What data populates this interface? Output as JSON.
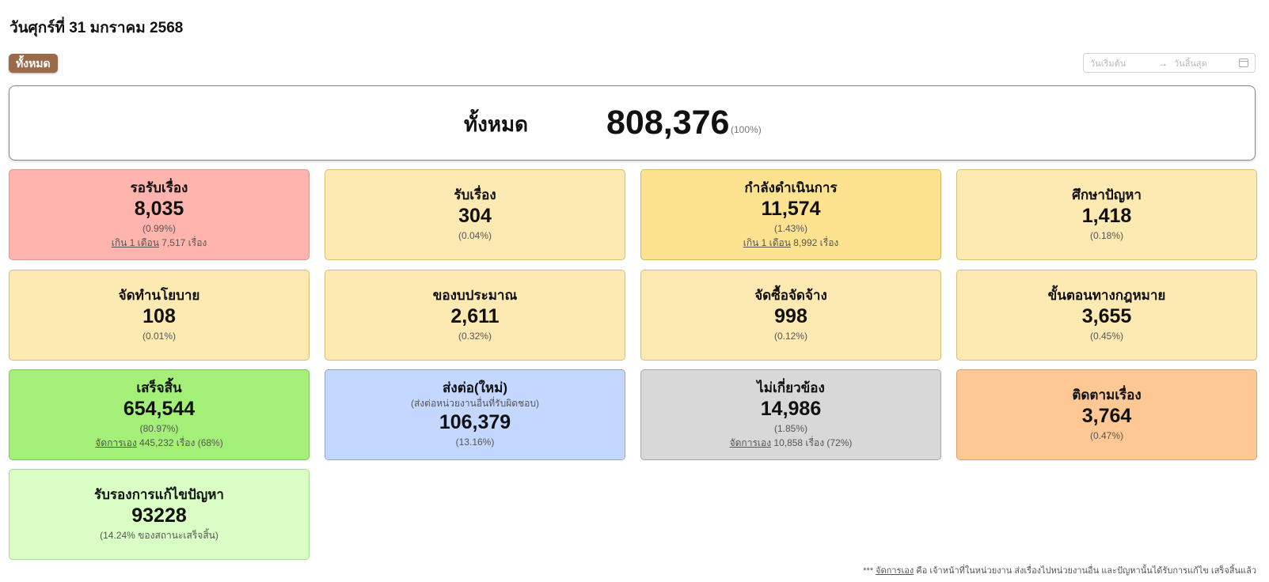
{
  "date_heading": "วันศุกร์ที่ 31 มกราคม 2568",
  "filter": {
    "all_label": "ทั้งหมด"
  },
  "date_range": {
    "start_placeholder": "วันเริ่มต้น",
    "arrow": "→",
    "end_placeholder": "วันสิ้นสุด"
  },
  "total": {
    "label": "ทั้งหมด",
    "value": "808,376",
    "pct": "(100%)"
  },
  "cards": [
    {
      "title": "รอรับเรื่อง",
      "value": "8,035",
      "pct": "(0.99%)",
      "note_link": "เกิน 1 เดือน",
      "note_rest": " 7,517 เรื่อง"
    },
    {
      "title": "รับเรื่อง",
      "value": "304",
      "pct": "(0.04%)"
    },
    {
      "title": "กำลังดำเนินการ",
      "value": "11,574",
      "pct": "(1.43%)",
      "note_link": "เกิน 1 เดือน",
      "note_rest": " 8,992 เรื่อง"
    },
    {
      "title": "ศึกษาปัญหา",
      "value": "1,418",
      "pct": "(0.18%)"
    },
    {
      "title": "จัดทำนโยบาย",
      "value": "108",
      "pct": "(0.01%)"
    },
    {
      "title": "ของบประมาณ",
      "value": "2,611",
      "pct": "(0.32%)"
    },
    {
      "title": "จัดซื้อจัดจ้าง",
      "value": "998",
      "pct": "(0.12%)"
    },
    {
      "title": "ขั้นตอนทางกฎหมาย",
      "value": "3,655",
      "pct": "(0.45%)"
    },
    {
      "title": "เสร็จสิ้น",
      "value": "654,544",
      "pct": "(80.97%)",
      "note_link": "จัดการเอง",
      "note_rest": " 445,232 เรื่อง (68%)"
    },
    {
      "title": "ส่งต่อ(ใหม่)",
      "subtitle": "(ส่งต่อหน่วยงานอื่นที่รับผิดชอบ)",
      "value": "106,379",
      "pct": "(13.16%)"
    },
    {
      "title": "ไม่เกี่ยวข้อง",
      "value": "14,986",
      "pct": "(1.85%)",
      "note_link": "จัดการเอง",
      "note_rest": " 10,858 เรื่อง (72%)"
    },
    {
      "title": "ติดตามเรื่อง",
      "value": "3,764",
      "pct": "(0.47%)"
    },
    {
      "title": "รับรองการแก้ไขปัญหา",
      "value": "93228",
      "pct": "(14.24% ของสถานะเสร็จสิ้น)"
    }
  ],
  "footnote": {
    "prefix": "*** ",
    "link": "จัดการเอง",
    "rest": " คือ เจ้าหน้าที่ในหน่วยงาน ส่งเรื่องไปหน่วยงานอื่น และปัญหานั้นได้รับการแก้ไข เสร็จสิ้นแล้ว"
  },
  "colors": {
    "filter_button": "#9a6a4b",
    "waiting": "#ffb5ad",
    "pending": "#fde9b2",
    "in_progress": "#fde290",
    "completed": "#a4ef78",
    "forwarded": "#c4d7ff",
    "irrelevant": "#d8d8d8",
    "follow_up": "#fec894",
    "resolved_certified": "#d9ffc5"
  }
}
